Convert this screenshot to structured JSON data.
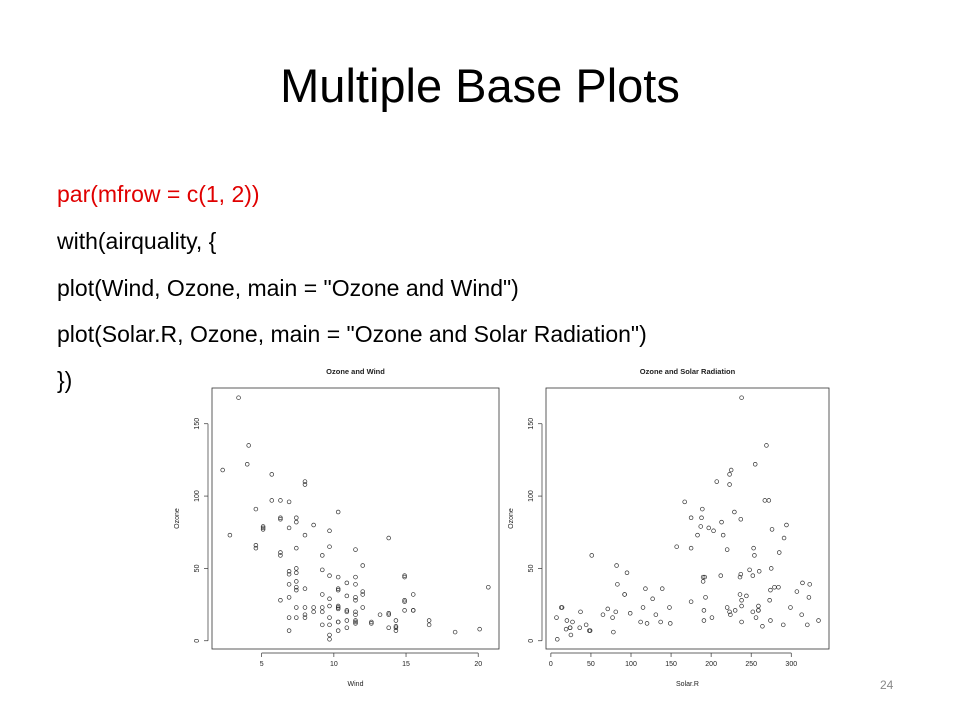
{
  "title": "Multiple Base Plots",
  "code": [
    "par(mfrow = c(1, 2))",
    "with(airquality, {",
    "plot(Wind, Ozone, main = \"Ozone and Wind\")",
    "plot(Solar.R, Ozone, main = \"Ozone and Solar Radiation\")",
    "})"
  ],
  "page_number": 24,
  "chart_data": [
    {
      "type": "scatter",
      "title": "Ozone and Wind",
      "x_label": "Wind",
      "y_label": "Ozone",
      "color": "#333333",
      "x": [
        7.4,
        8.0,
        12.6,
        11.5,
        14.9,
        8.6,
        13.8,
        20.1,
        6.9,
        9.7,
        9.2,
        10.9,
        13.2,
        11.5,
        12.0,
        18.4,
        11.5,
        9.7,
        9.7,
        16.6,
        9.7,
        12.0,
        12.0,
        14.9,
        5.7,
        7.4,
        9.7,
        13.8,
        11.5,
        8.0,
        14.9,
        20.7,
        9.2,
        11.5,
        10.3,
        4.1,
        9.2,
        9.2,
        4.6,
        10.9,
        5.1,
        6.3,
        5.7,
        7.4,
        14.3,
        14.9,
        14.3,
        6.9,
        10.3,
        6.3,
        5.1,
        11.5,
        6.9,
        8.6,
        8.0,
        8.6,
        12.0,
        7.4,
        7.4,
        7.4,
        9.2,
        6.9,
        13.8,
        7.4,
        6.9,
        7.4,
        4.6,
        4.0,
        10.3,
        8.0,
        11.5,
        11.5,
        9.7,
        10.3,
        6.3,
        7.4,
        10.9,
        10.3,
        15.5,
        14.3,
        9.7,
        3.4,
        8.0,
        9.7,
        2.3,
        6.3,
        6.3,
        6.9,
        5.1,
        2.8,
        4.6,
        7.4,
        15.5,
        10.9,
        10.3,
        10.9,
        9.7,
        14.9,
        15.5,
        6.3,
        10.9,
        11.5,
        6.9,
        13.8,
        10.3,
        10.3,
        8.0,
        12.6,
        9.2,
        10.3,
        10.3,
        16.6,
        6.9,
        14.3,
        8.0,
        11.5
      ],
      "y": [
        41,
        36,
        12,
        18,
        28,
        23,
        19,
        8,
        7,
        16,
        11,
        14,
        18,
        14,
        34,
        6,
        30,
        11,
        1,
        11,
        4,
        32,
        23,
        45,
        115,
        37,
        29,
        71,
        39,
        23,
        21,
        37,
        20,
        12,
        13,
        135,
        49,
        32,
        64,
        40,
        77,
        97,
        97,
        85,
        10,
        27,
        7,
        48,
        35,
        61,
        79,
        63,
        16,
        80,
        108,
        20,
        52,
        82,
        50,
        64,
        59,
        39,
        9,
        16,
        78,
        35,
        66,
        122,
        89,
        110,
        44,
        28,
        65,
        22,
        59,
        23,
        31,
        44,
        21,
        9,
        45,
        168,
        73,
        76,
        118,
        84,
        85,
        96,
        78,
        73,
        91,
        47,
        32,
        20,
        23,
        21,
        24,
        44,
        21,
        28,
        9,
        13,
        46,
        18,
        13,
        24,
        16,
        13,
        23,
        36,
        7,
        14,
        30,
        14,
        18,
        20
      ],
      "xlim": [
        1.56,
        21.44
      ],
      "ylim": [
        -5.7,
        174.7
      ],
      "xticks": [
        5,
        10,
        15,
        20
      ],
      "yticks": [
        0,
        50,
        100,
        150
      ]
    },
    {
      "type": "scatter",
      "title": "Ozone and Solar Radiation",
      "x_label": "Solar.R",
      "y_label": "Ozone",
      "color": "#333333",
      "x": [
        190,
        118,
        149,
        313,
        null,
        299,
        99,
        19,
        null,
        256,
        290,
        274,
        65,
        334,
        307,
        78,
        322,
        44,
        8,
        320,
        25,
        92,
        13,
        252,
        223,
        279,
        127,
        291,
        323,
        148,
        191,
        284,
        37,
        120,
        137,
        269,
        248,
        236,
        175,
        314,
        276,
        267,
        272,
        175,
        264,
        175,
        48,
        260,
        274,
        285,
        187,
        220,
        7,
        294,
        223,
        81,
        82,
        213,
        275,
        253,
        254,
        83,
        24,
        77,
        null,
        null,
        null,
        255,
        229,
        207,
        192,
        273,
        157,
        71,
        51,
        115,
        244,
        190,
        259,
        36,
        212,
        238,
        215,
        203,
        225,
        237,
        188,
        167,
        197,
        183,
        189,
        95,
        92,
        252,
        220,
        230,
        259,
        236,
        259,
        238,
        24,
        112,
        237,
        224,
        27,
        238,
        201,
        238,
        14,
        139,
        49,
        20,
        193,
        191,
        131,
        223
      ],
      "y": [
        41,
        36,
        12,
        18,
        28,
        23,
        19,
        8,
        7,
        16,
        11,
        14,
        18,
        14,
        34,
        6,
        30,
        11,
        1,
        11,
        4,
        32,
        23,
        45,
        115,
        37,
        29,
        71,
        39,
        23,
        21,
        37,
        20,
        12,
        13,
        135,
        49,
        32,
        64,
        40,
        77,
        97,
        97,
        85,
        10,
        27,
        7,
        48,
        35,
        61,
        79,
        63,
        16,
        80,
        108,
        20,
        52,
        82,
        50,
        64,
        59,
        39,
        9,
        16,
        78,
        35,
        66,
        122,
        89,
        110,
        44,
        28,
        65,
        22,
        59,
        23,
        31,
        44,
        21,
        9,
        45,
        168,
        73,
        76,
        118,
        84,
        85,
        96,
        78,
        73,
        91,
        47,
        32,
        20,
        23,
        21,
        24,
        44,
        21,
        28,
        9,
        13,
        46,
        18,
        13,
        24,
        16,
        13,
        23,
        36,
        7,
        14,
        30,
        14,
        18,
        20
      ],
      "xlim": [
        -6.08,
        347.08
      ],
      "ylim": [
        -5.7,
        174.7
      ],
      "xticks": [
        0,
        50,
        100,
        150,
        200,
        250,
        300
      ],
      "yticks": [
        0,
        50,
        100,
        150
      ]
    }
  ]
}
